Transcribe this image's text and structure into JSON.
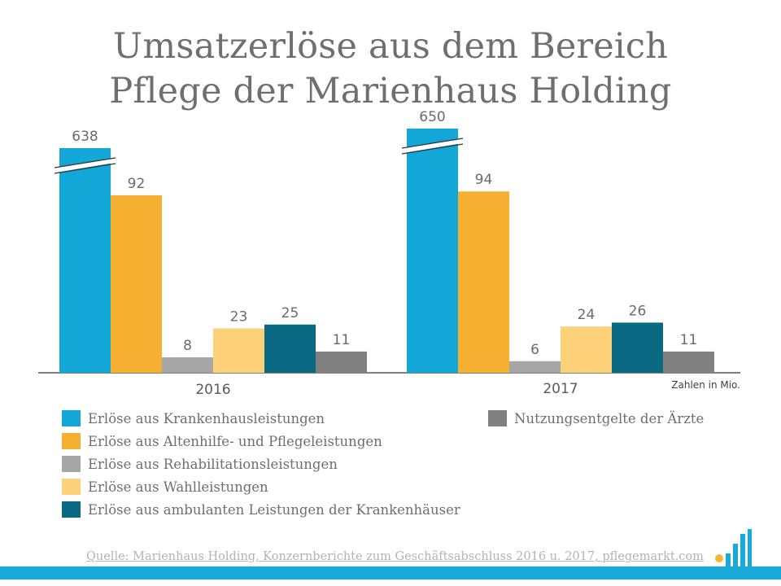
{
  "colors": {
    "krankenhaus": "#12a7d6",
    "altenhilfe": "#f5af31",
    "reha": "#a6a6a6",
    "wahl": "#fdd07a",
    "ambulant": "#0a6a84",
    "aerzte": "#808080",
    "footer": "#18a9da",
    "logo_dot": "#f5b731"
  },
  "chart_data": {
    "type": "bar",
    "title": "Umsatzerlöse aus dem Bereich Pflege der Marienhaus Holding",
    "categories": [
      "2016",
      "2017"
    ],
    "series": [
      {
        "name": "Erlöse aus Krankenhausleistungen",
        "values": [
          638,
          650
        ],
        "axis_break": true
      },
      {
        "name": "Erlöse aus Altenhilfe- und Pflegeleistungen",
        "values": [
          92,
          94
        ]
      },
      {
        "name": "Erlöse aus Rehabilitationsleistungen",
        "values": [
          8,
          6
        ]
      },
      {
        "name": "Erlöse aus Wahlleistungen",
        "values": [
          23,
          24
        ]
      },
      {
        "name": "Erlöse aus ambulanten Leistungen der Krankenhäuser",
        "values": [
          25,
          26
        ]
      },
      {
        "name": "Nutzungsentgelte der Ärzte",
        "values": [
          11,
          11
        ]
      }
    ],
    "note": "Zahlen in Mio.",
    "legend_position": "bottom",
    "grid": false
  },
  "title_lines": [
    "Umsatzerlöse aus dem Bereich",
    "Pflege der Marienhaus Holding"
  ],
  "source": "Quelle: Marienhaus Holding, Konzernberichte zum Geschäftsabschluss 2016 u. 2017, pflegemarkt.com"
}
